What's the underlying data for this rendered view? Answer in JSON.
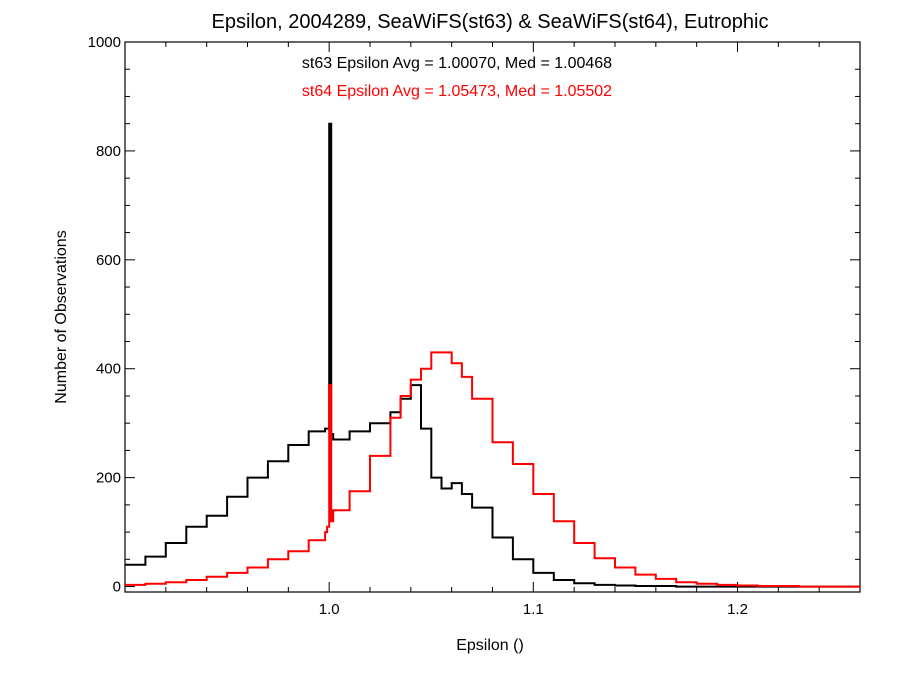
{
  "chart_data": {
    "type": "line",
    "title": "Epsilon, 2004289, SeaWiFS(st63) & SeaWiFS(st64), Eutrophic",
    "xlabel": "Epsilon ()",
    "ylabel": "Number of Observations",
    "xlim": [
      0.9,
      1.26
    ],
    "ylim": [
      -10,
      1000
    ],
    "x_ticks": [
      {
        "value": 1.0,
        "label": "1.0"
      },
      {
        "value": 1.1,
        "label": "1.1"
      },
      {
        "value": 1.2,
        "label": "1.2"
      }
    ],
    "y_ticks": [
      {
        "value": 0,
        "label": "0"
      },
      {
        "value": 200,
        "label": "200"
      },
      {
        "value": 400,
        "label": "400"
      },
      {
        "value": 600,
        "label": "600"
      },
      {
        "value": 800,
        "label": "800"
      },
      {
        "value": 1000,
        "label": "1000"
      }
    ],
    "grid": false,
    "annotations": [
      {
        "text": "st63 Epsilon Avg = 1.00070, Med = 1.00468",
        "color": "#000000"
      },
      {
        "text": "st64 Epsilon Avg = 1.05473, Med = 1.05502",
        "color": "#ff0000"
      }
    ],
    "series": [
      {
        "color": "#000000",
        "step": true,
        "x": [
          0.9,
          0.91,
          0.92,
          0.93,
          0.94,
          0.95,
          0.96,
          0.97,
          0.98,
          0.99,
          0.998,
          0.999,
          1.0,
          1.001,
          1.002,
          1.01,
          1.02,
          1.03,
          1.035,
          1.04,
          1.045,
          1.05,
          1.055,
          1.06,
          1.065,
          1.07,
          1.08,
          1.09,
          1.1,
          1.11,
          1.12,
          1.13,
          1.14,
          1.15,
          1.16,
          1.17,
          1.18,
          1.19,
          1.2,
          1.21,
          1.22,
          1.23,
          1.24,
          1.25,
          1.26
        ],
        "y": [
          40,
          55,
          80,
          110,
          130,
          165,
          200,
          230,
          260,
          285,
          290,
          290,
          850,
          280,
          270,
          285,
          300,
          320,
          345,
          370,
          290,
          200,
          180,
          190,
          170,
          145,
          90,
          50,
          25,
          12,
          6,
          3,
          2,
          1,
          1,
          0,
          0,
          0,
          0,
          0,
          0,
          0,
          0,
          0,
          0
        ]
      },
      {
        "color": "#ff0000",
        "step": true,
        "x": [
          0.9,
          0.91,
          0.92,
          0.93,
          0.94,
          0.95,
          0.96,
          0.97,
          0.98,
          0.99,
          0.998,
          0.999,
          1.0,
          1.001,
          1.002,
          1.01,
          1.02,
          1.03,
          1.035,
          1.04,
          1.045,
          1.05,
          1.055,
          1.06,
          1.065,
          1.07,
          1.08,
          1.09,
          1.1,
          1.11,
          1.12,
          1.13,
          1.14,
          1.15,
          1.16,
          1.17,
          1.18,
          1.19,
          1.2,
          1.21,
          1.22,
          1.23,
          1.24,
          1.25,
          1.26
        ],
        "y": [
          3,
          5,
          8,
          12,
          18,
          25,
          35,
          50,
          65,
          85,
          100,
          110,
          370,
          120,
          140,
          175,
          240,
          310,
          350,
          380,
          400,
          430,
          430,
          410,
          385,
          345,
          265,
          225,
          170,
          120,
          80,
          52,
          35,
          22,
          14,
          8,
          5,
          3,
          2,
          1,
          1,
          0,
          0,
          0,
          0
        ]
      }
    ]
  }
}
